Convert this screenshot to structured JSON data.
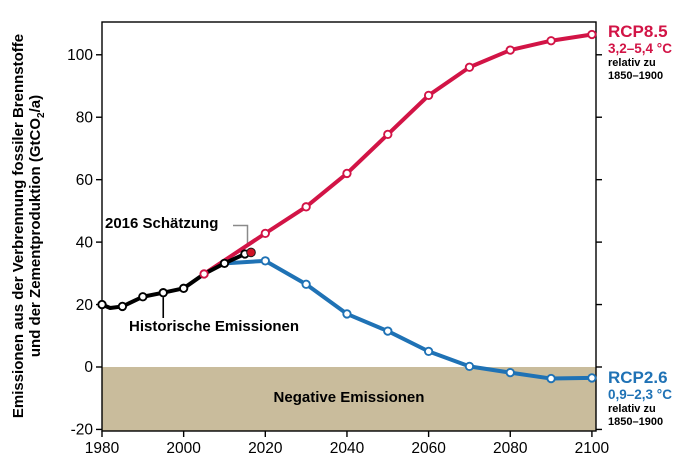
{
  "ylabel_parts": {
    "line1": "Emissionen aus der Verbrennung fossiler Brennstoffe",
    "line2_pre": "und der Zementproduktion (GtCO",
    "line2_sub": "2",
    "line2_post": "/a)"
  },
  "annotations": {
    "estimate2016": "2016 Schätzung",
    "historical": "Historische Emissionen",
    "negative": "Negative Emissionen"
  },
  "series_labels": {
    "rcp85": {
      "name": "RCP8.5",
      "range": "3,2–5,4 °C",
      "rel_line1": "relativ zu",
      "rel_line2": "1850–1900",
      "color": "#d21446"
    },
    "rcp26": {
      "name": "RCP2.6",
      "range": "0,9–2,3 °C",
      "rel_line1": "relativ zu",
      "rel_line2": "1850–1900",
      "color": "#1f72b5"
    }
  },
  "chart_data": {
    "type": "line",
    "title": "",
    "xlabel": "",
    "ylabel": "Emissionen aus der Verbrennung fossiler Brennstoffe und der Zementproduktion (GtCO2/a)",
    "xlim": [
      1980,
      2101
    ],
    "ylim": [
      -20.5,
      110.5
    ],
    "x_ticks": [
      1980,
      2000,
      2020,
      2040,
      2060,
      2080,
      2100
    ],
    "y_ticks": [
      100,
      80,
      60,
      40,
      20,
      0,
      -20
    ],
    "grid": false,
    "legend_position": "right-edge-labels",
    "series": [
      {
        "name": "Historische Emissionen",
        "color": "#000000",
        "width": 4,
        "x": [
          1980,
          1982,
          1985,
          1990,
          1995,
          2000,
          2005,
          2010,
          2015
        ],
        "y": [
          20.0,
          18.9,
          19.4,
          22.5,
          23.8,
          25.2,
          29.8,
          33.2,
          36.2
        ],
        "marker_x": [
          1980,
          1985,
          1990,
          1995,
          2000,
          2010,
          2015
        ]
      },
      {
        "name": "RCP8.5",
        "color": "#d21446",
        "width": 4,
        "x": [
          2005,
          2020,
          2030,
          2040,
          2050,
          2060,
          2070,
          2080,
          2090,
          2100
        ],
        "y": [
          29.8,
          42.8,
          51.3,
          62.0,
          74.5,
          87.0,
          96.0,
          101.5,
          104.5,
          106.5
        ],
        "marker_x": [
          2005,
          2020,
          2030,
          2040,
          2050,
          2060,
          2070,
          2080,
          2090,
          2100
        ]
      },
      {
        "name": "RCP2.6",
        "color": "#1f72b5",
        "width": 4,
        "x": [
          2010,
          2020,
          2030,
          2040,
          2050,
          2060,
          2070,
          2080,
          2090,
          2100
        ],
        "y": [
          33.2,
          34.0,
          26.5,
          17.0,
          11.5,
          5.0,
          0.2,
          -1.8,
          -3.7,
          -3.5
        ],
        "marker_x": [
          2020,
          2030,
          2040,
          2050,
          2060,
          2070,
          2080,
          2090,
          2100
        ]
      }
    ],
    "point_2016": {
      "x": 2016.5,
      "y": 36.7,
      "color": "#cf1225",
      "label": "2016 Schätzung"
    },
    "negative_region": {
      "from": 0,
      "to": -20.5,
      "color": "#c9bc9c",
      "label": "Negative Emissionen"
    }
  }
}
